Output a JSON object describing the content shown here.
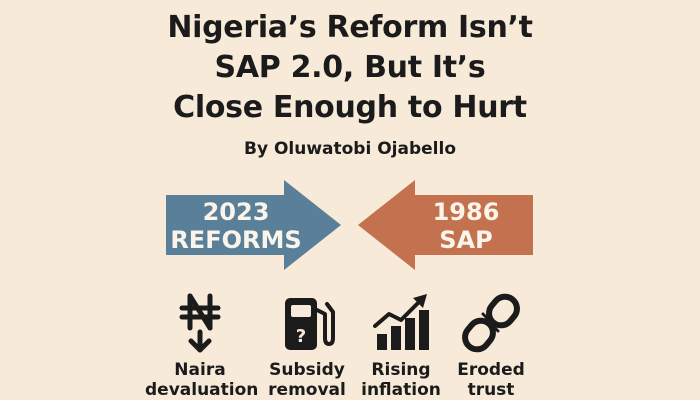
{
  "title": {
    "line1": "Nigeria’s Reform Isn’t",
    "line2": "SAP 2.0, But It’s",
    "line3": "Close Enough to Hurt"
  },
  "byline": "By Oluwatobi Ojabello",
  "arrows": {
    "left": {
      "line1": "2023",
      "line2": "REFORMS",
      "color": "#5a7f98"
    },
    "right": {
      "line1": "1986",
      "line2": "SAP",
      "color": "#c4714f"
    }
  },
  "icons": [
    {
      "icon": "naira-down-icon",
      "line1": "Naira",
      "line2": "devaluation"
    },
    {
      "icon": "fuel-pump-icon",
      "line1": "Subsidy",
      "line2": "removal"
    },
    {
      "icon": "rising-chart-icon",
      "line1": "Rising",
      "line2": "inflation"
    },
    {
      "icon": "broken-chain-icon",
      "line1": "Eroded",
      "line2": "trust"
    }
  ],
  "colors": {
    "background": "#f7ead8",
    "text": "#1b1b1b"
  }
}
